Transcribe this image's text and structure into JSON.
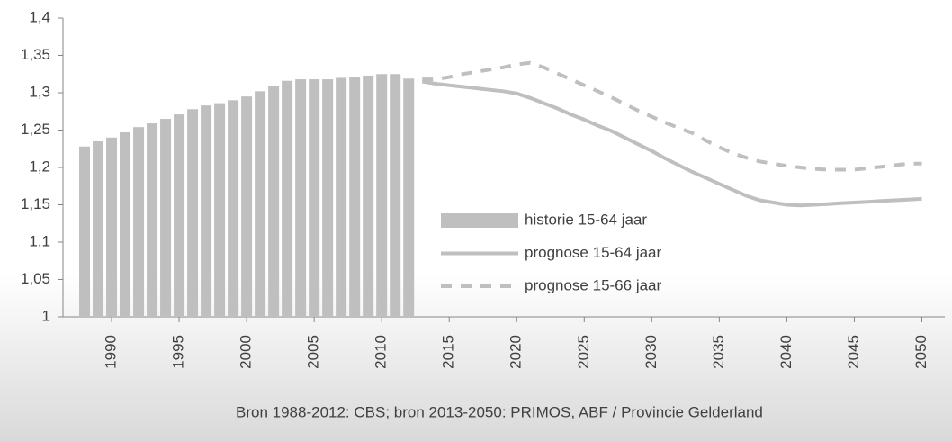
{
  "chart_data": {
    "type": "combo",
    "ylim": [
      1,
      1.4
    ],
    "yticks": [
      1,
      {
        "value": 1.05,
        "label": "1,05"
      },
      {
        "value": 1.1,
        "label": "1,1"
      },
      {
        "value": 1.15,
        "label": "1,15"
      },
      {
        "value": 1.2,
        "label": "1,2"
      },
      {
        "value": 1.25,
        "label": "1,25"
      },
      {
        "value": 1.3,
        "label": "1,3"
      },
      {
        "value": 1.35,
        "label": "1,35"
      },
      {
        "value": 1.4,
        "label": "1,4"
      }
    ],
    "xlim": [
      1986.4,
      2051.7
    ],
    "xticks": [
      1990,
      1995,
      2000,
      2005,
      2010,
      2015,
      2020,
      2025,
      2030,
      2035,
      2040,
      2045,
      2050
    ],
    "legend": "center-right",
    "note": "Bron 1988-2012: CBS;  bron 2013-2050:  PRIMOS, ABF / Provincie Gelderland",
    "series": [
      {
        "name": "historie 15-64 jaar",
        "type": "bar",
        "color": "#bfbfbf",
        "x": [
          1988,
          1989,
          1990,
          1991,
          1992,
          1993,
          1994,
          1995,
          1996,
          1997,
          1998,
          1999,
          2000,
          2001,
          2002,
          2003,
          2004,
          2005,
          2006,
          2007,
          2008,
          2009,
          2010,
          2011,
          2012
        ],
        "values": [
          1.228,
          1.235,
          1.24,
          1.247,
          1.254,
          1.259,
          1.265,
          1.271,
          1.278,
          1.283,
          1.286,
          1.29,
          1.295,
          1.302,
          1.309,
          1.316,
          1.318,
          1.318,
          1.318,
          1.32,
          1.321,
          1.323,
          1.325,
          1.325,
          1.319
        ]
      },
      {
        "name": "prognose 15-64 jaar",
        "type": "line",
        "color": "#bfbfbf",
        "dashed": false,
        "x": [
          2013,
          2014,
          2015,
          2016,
          2017,
          2018,
          2019,
          2020,
          2021,
          2022,
          2023,
          2024,
          2025,
          2026,
          2027,
          2028,
          2029,
          2030,
          2031,
          2032,
          2033,
          2034,
          2035,
          2036,
          2037,
          2038,
          2039,
          2040,
          2041,
          2042,
          2043,
          2044,
          2045,
          2046,
          2047,
          2048,
          2049,
          2050
        ],
        "values": [
          1.315,
          1.312,
          1.31,
          1.308,
          1.306,
          1.304,
          1.302,
          1.299,
          1.293,
          1.286,
          1.279,
          1.271,
          1.264,
          1.256,
          1.249,
          1.24,
          1.231,
          1.222,
          1.212,
          1.203,
          1.194,
          1.186,
          1.178,
          1.17,
          1.162,
          1.156,
          1.153,
          1.15,
          1.149,
          1.15,
          1.151,
          1.152,
          1.153,
          1.154,
          1.155,
          1.156,
          1.157,
          1.158
        ]
      },
      {
        "name": "prognose 15-66 jaar",
        "type": "line",
        "color": "#bfbfbf",
        "dashed": true,
        "x": [
          2013,
          2014,
          2015,
          2016,
          2017,
          2018,
          2019,
          2020,
          2021,
          2022,
          2023,
          2024,
          2025,
          2026,
          2027,
          2028,
          2029,
          2030,
          2031,
          2032,
          2033,
          2034,
          2035,
          2036,
          2037,
          2038,
          2039,
          2040,
          2041,
          2042,
          2043,
          2044,
          2045,
          2046,
          2047,
          2048,
          2049,
          2050
        ],
        "values": [
          1.318,
          1.318,
          1.321,
          1.325,
          1.328,
          1.331,
          1.334,
          1.338,
          1.34,
          1.334,
          1.326,
          1.318,
          1.31,
          1.302,
          1.294,
          1.285,
          1.276,
          1.268,
          1.26,
          1.253,
          1.246,
          1.236,
          1.227,
          1.219,
          1.213,
          1.208,
          1.205,
          1.202,
          1.2,
          1.198,
          1.197,
          1.197,
          1.197,
          1.199,
          1.201,
          1.203,
          1.205,
          1.205
        ]
      }
    ]
  }
}
